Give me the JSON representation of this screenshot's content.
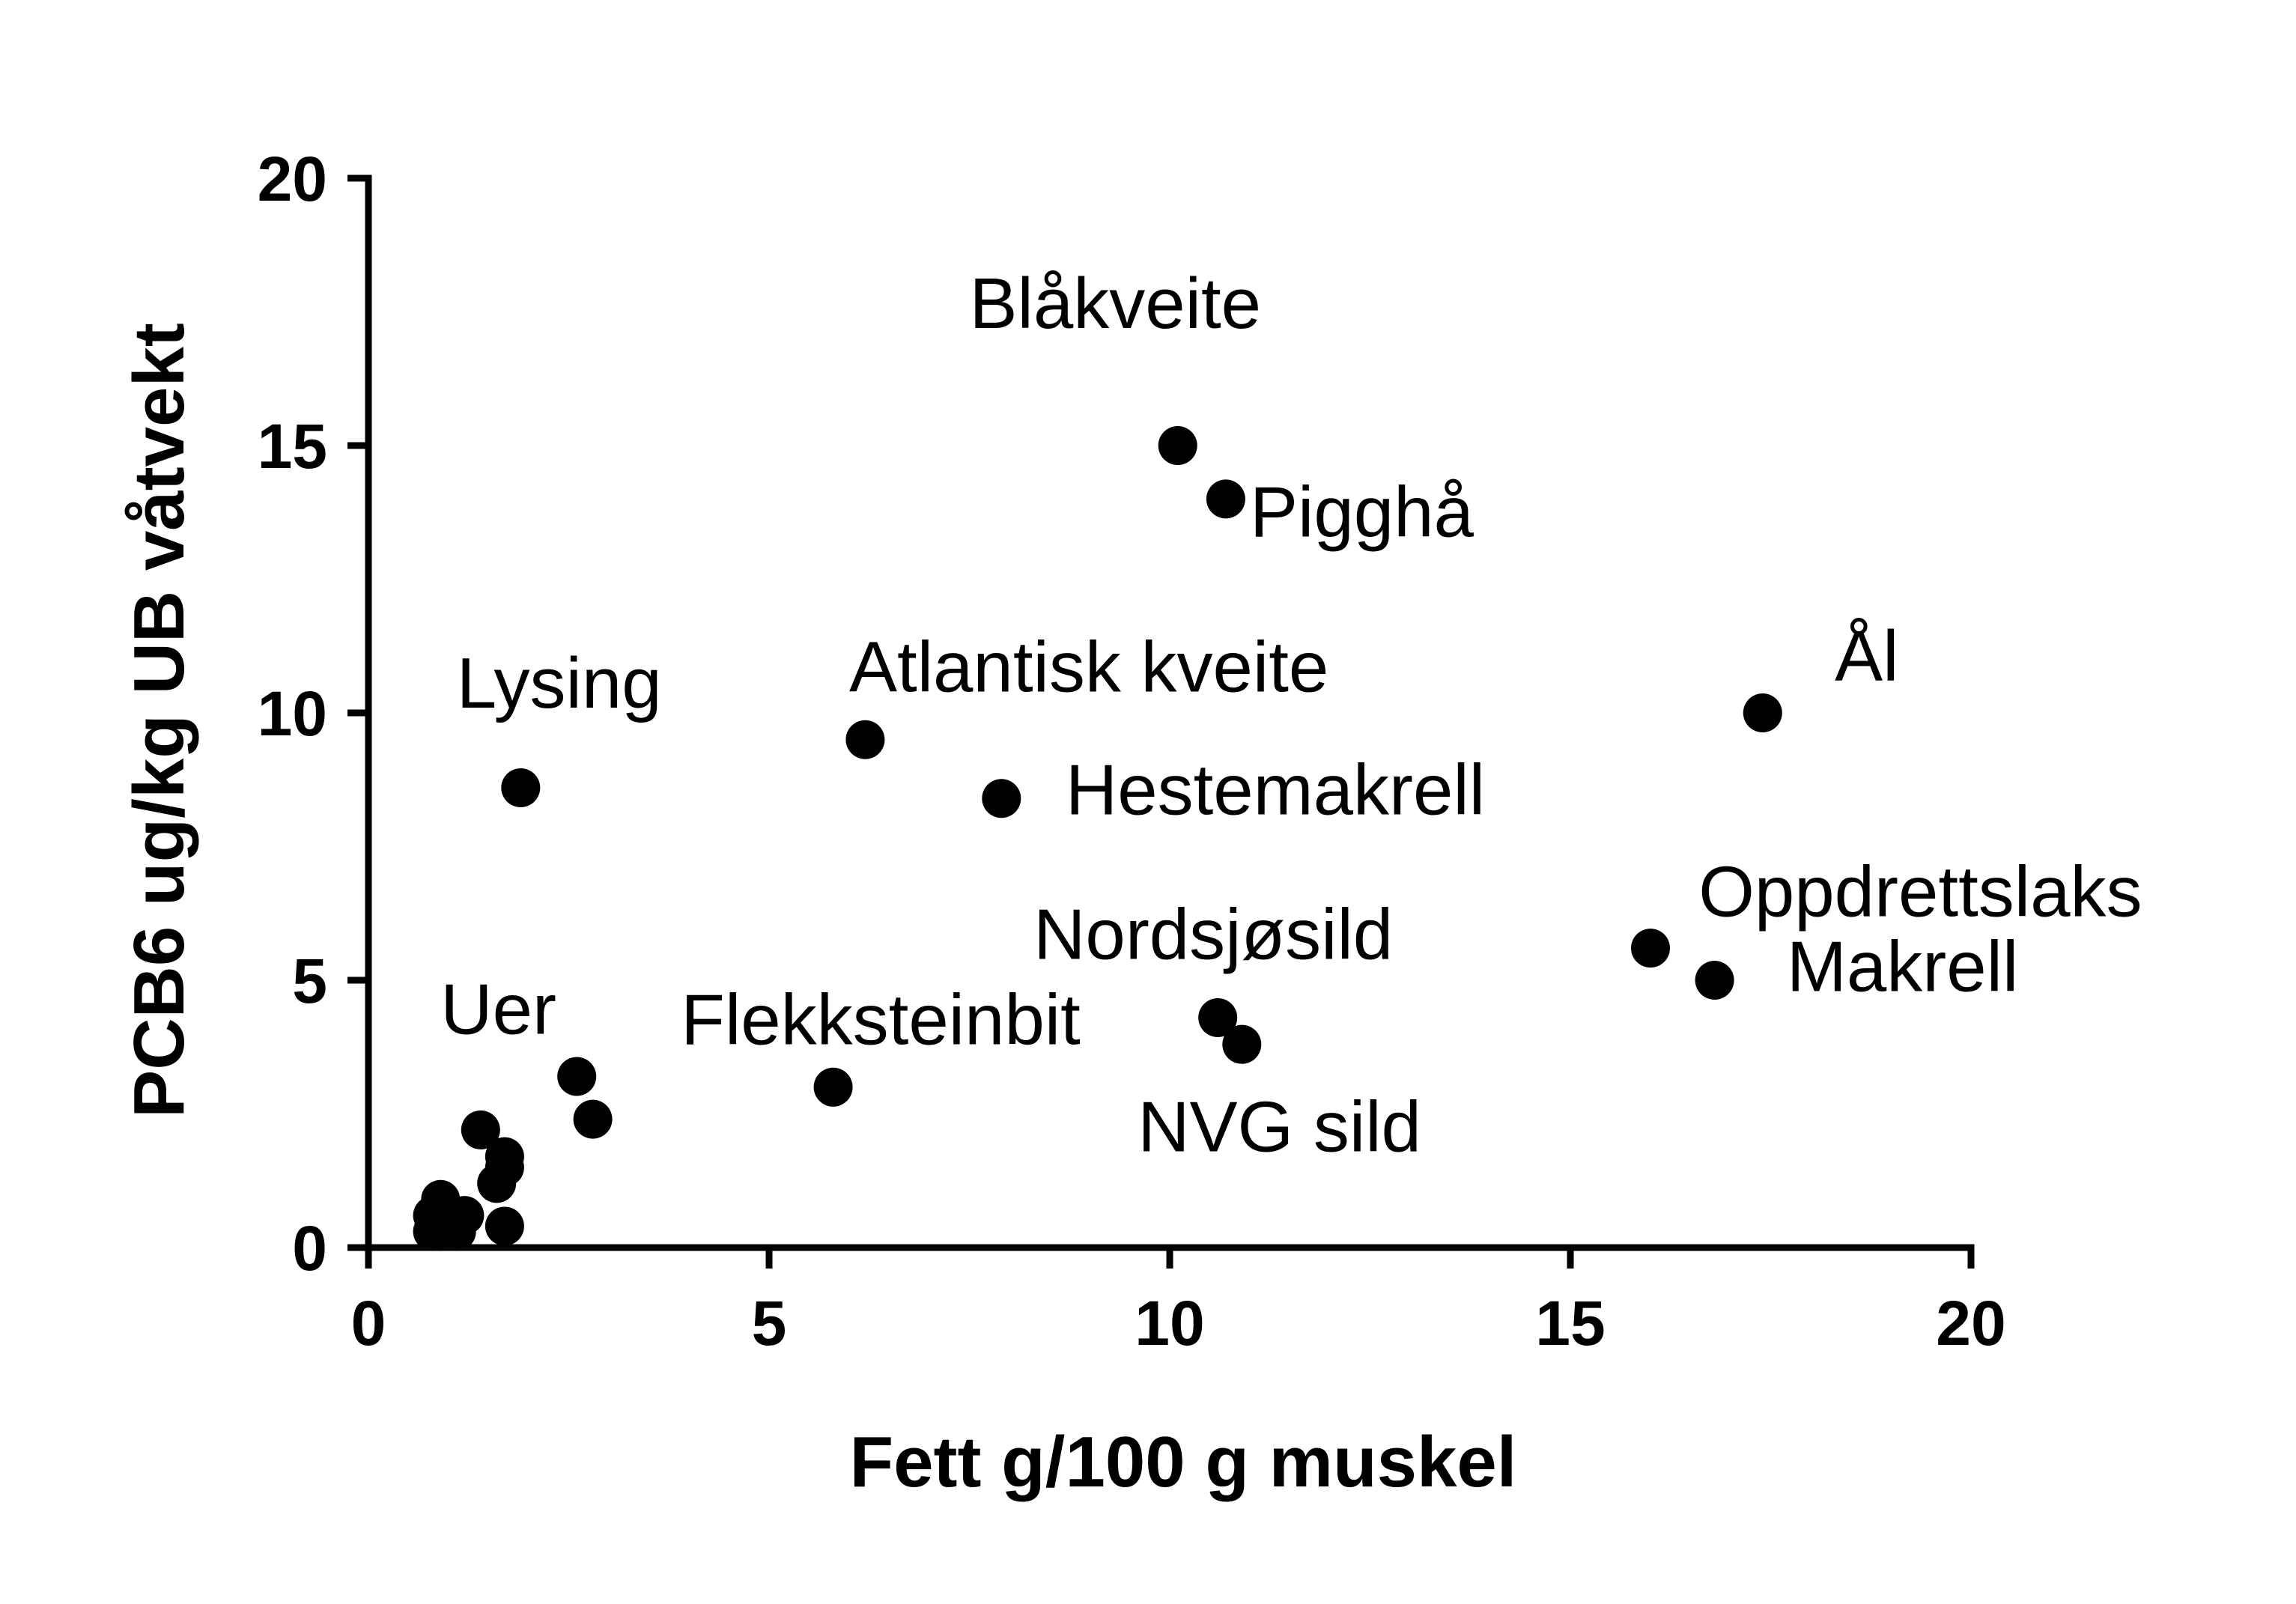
{
  "chart_data": {
    "type": "scatter",
    "title": "",
    "xlabel": "Fett g/100 g muskel",
    "ylabel": "PCB6 ug/kg UB våtvekt",
    "xlim": [
      0,
      20
    ],
    "ylim": [
      0,
      20
    ],
    "xticks": [
      0,
      5,
      10,
      15,
      20
    ],
    "yticks": [
      0,
      5,
      10,
      15,
      20
    ],
    "grid": false,
    "legend": "none",
    "marker_color": "#000000",
    "points": [
      {
        "x": 10.1,
        "y": 15.0
      },
      {
        "x": 10.7,
        "y": 14.0
      },
      {
        "x": 6.2,
        "y": 9.5
      },
      {
        "x": 7.9,
        "y": 8.4
      },
      {
        "x": 1.9,
        "y": 8.6
      },
      {
        "x": 17.4,
        "y": 10.0
      },
      {
        "x": 16.0,
        "y": 5.6
      },
      {
        "x": 16.8,
        "y": 5.0
      },
      {
        "x": 10.6,
        "y": 4.3
      },
      {
        "x": 10.9,
        "y": 3.8
      },
      {
        "x": 5.8,
        "y": 3.0
      },
      {
        "x": 2.6,
        "y": 3.2
      },
      {
        "x": 2.8,
        "y": 2.4
      },
      {
        "x": 1.4,
        "y": 2.2
      },
      {
        "x": 1.7,
        "y": 1.7
      },
      {
        "x": 1.7,
        "y": 1.5
      },
      {
        "x": 1.6,
        "y": 1.2
      },
      {
        "x": 1.7,
        "y": 0.4
      },
      {
        "x": 0.9,
        "y": 0.9
      },
      {
        "x": 1.2,
        "y": 0.6
      },
      {
        "x": 0.8,
        "y": 0.6
      },
      {
        "x": 1.0,
        "y": 0.5
      },
      {
        "x": 0.9,
        "y": 0.3
      },
      {
        "x": 1.1,
        "y": 0.3
      },
      {
        "x": 0.8,
        "y": 0.3
      }
    ],
    "annotations": [
      {
        "text": "Blåkveite",
        "x": 7.5,
        "y": 17.2
      },
      {
        "text": "Pigghå",
        "x": 11.0,
        "y": 13.3
      },
      {
        "text": "Atlantisk kveite",
        "x": 6.0,
        "y": 10.4
      },
      {
        "text": "Hestemakrell",
        "x": 8.7,
        "y": 8.1
      },
      {
        "text": "Lysing",
        "x": 1.1,
        "y": 10.1
      },
      {
        "text": "Ål",
        "x": 18.3,
        "y": 10.6
      },
      {
        "text": "Oppdrettslaks",
        "x": 16.6,
        "y": 6.2
      },
      {
        "text": "Makrell",
        "x": 17.7,
        "y": 4.8
      },
      {
        "text": "Nordsjøsild",
        "x": 8.3,
        "y": 5.4
      },
      {
        "text": "NVG sild",
        "x": 9.6,
        "y": 1.8
      },
      {
        "text": "Flekksteinbit",
        "x": 3.9,
        "y": 3.8
      },
      {
        "text": "Uer",
        "x": 0.9,
        "y": 4.0
      }
    ]
  }
}
